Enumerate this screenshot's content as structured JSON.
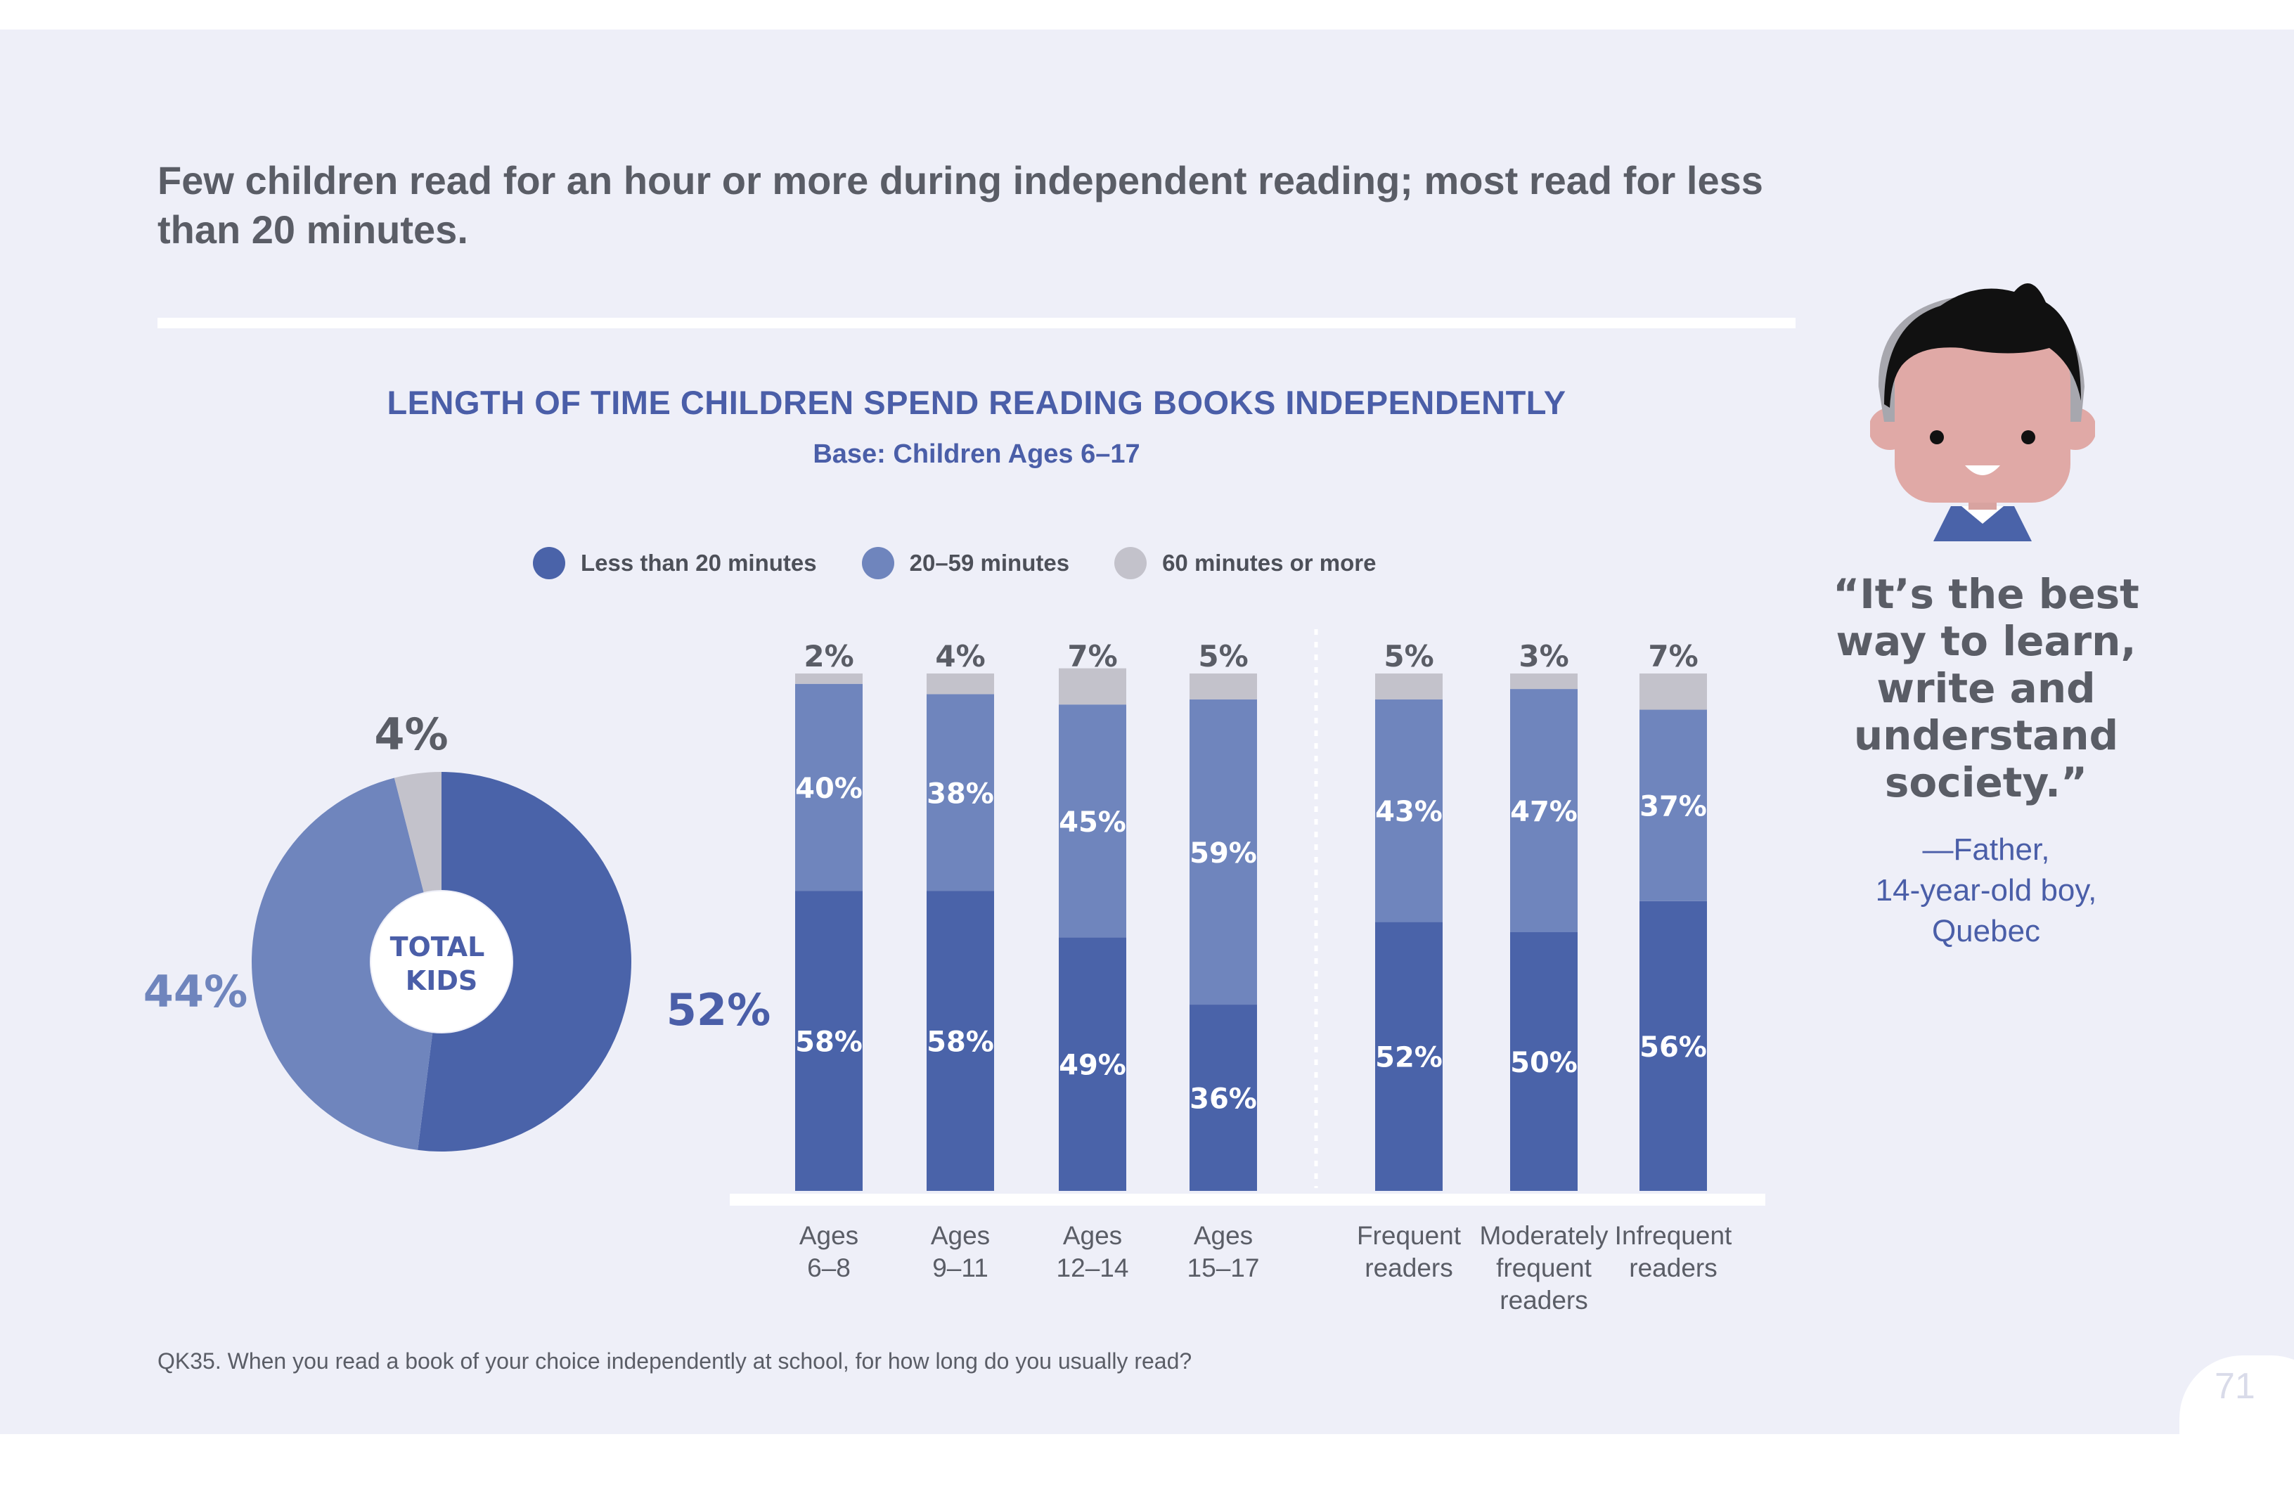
{
  "headline": "Few children read for an hour or more during independent reading; most read for less than 20 minutes.",
  "colors": {
    "less_than_20": "#4a63a9",
    "twenty_to_59": "#6f85bd",
    "sixty_plus": "#c3c2cb",
    "title_blue": "#4a5ea8",
    "text_gray": "#5a5d66",
    "background": "#eeeff8"
  },
  "quote": {
    "text": "“It’s the best way to learn, write and understand society.”",
    "attribution_lines": [
      "—Father,",
      "14-year-old boy,",
      "Quebec"
    ]
  },
  "footnote": "QK35. When you read a book of your choice independently at school, for how long do you usually read?",
  "page_number": "71",
  "avatar_icon": "child-avatar-icon",
  "chart_data": [
    {
      "type": "pie",
      "title": "LENGTH OF TIME CHILDREN SPEND READING BOOKS INDEPENDENTLY",
      "subtitle": "Base: Children Ages 6–17",
      "center_label": [
        "TOTAL",
        "KIDS"
      ],
      "legend": {
        "placement": "top",
        "entries": [
          "Less than 20 minutes",
          "20–59 minutes",
          "60 minutes or more"
        ]
      },
      "slices": [
        {
          "name": "Less than 20 minutes",
          "value": 52,
          "label": "52%"
        },
        {
          "name": "20–59 minutes",
          "value": 44,
          "label": "44%"
        },
        {
          "name": "60 minutes or more",
          "value": 4,
          "label": "4%"
        }
      ]
    },
    {
      "type": "bar",
      "stacked": true,
      "ylim": [
        0,
        100
      ],
      "grid": false,
      "groups": [
        {
          "label": "Ages 6–8",
          "lines": [
            "Ages",
            "6–8"
          ],
          "values": [
            58,
            40,
            2
          ],
          "labels": [
            "58%",
            "40%",
            "2%"
          ]
        },
        {
          "label": "Ages 9–11",
          "lines": [
            "Ages",
            "9–11"
          ],
          "values": [
            58,
            38,
            4
          ],
          "labels": [
            "58%",
            "38%",
            "4%"
          ]
        },
        {
          "label": "Ages 12–14",
          "lines": [
            "Ages",
            "12–14"
          ],
          "values": [
            49,
            45,
            7
          ],
          "labels": [
            "49%",
            "45%",
            "7%"
          ]
        },
        {
          "label": "Ages 15–17",
          "lines": [
            "Ages",
            "15–17"
          ],
          "values": [
            36,
            59,
            5
          ],
          "labels": [
            "36%",
            "59%",
            "5%"
          ]
        },
        {
          "label": "Frequent readers",
          "lines": [
            "Frequent",
            "readers"
          ],
          "values": [
            52,
            43,
            5
          ],
          "labels": [
            "52%",
            "43%",
            "5%"
          ]
        },
        {
          "label": "Moderately frequent readers",
          "lines": [
            "Moderately",
            "frequent",
            "readers"
          ],
          "values": [
            50,
            47,
            3
          ],
          "labels": [
            "50%",
            "47%",
            "3%"
          ]
        },
        {
          "label": "Infrequent readers",
          "lines": [
            "Infrequent",
            "readers"
          ],
          "values": [
            56,
            37,
            7
          ],
          "labels": [
            "56%",
            "37%",
            "7%"
          ]
        }
      ],
      "series": [
        {
          "name": "Less than 20 minutes"
        },
        {
          "name": "20–59 minutes"
        },
        {
          "name": "60 minutes or more"
        }
      ]
    }
  ]
}
